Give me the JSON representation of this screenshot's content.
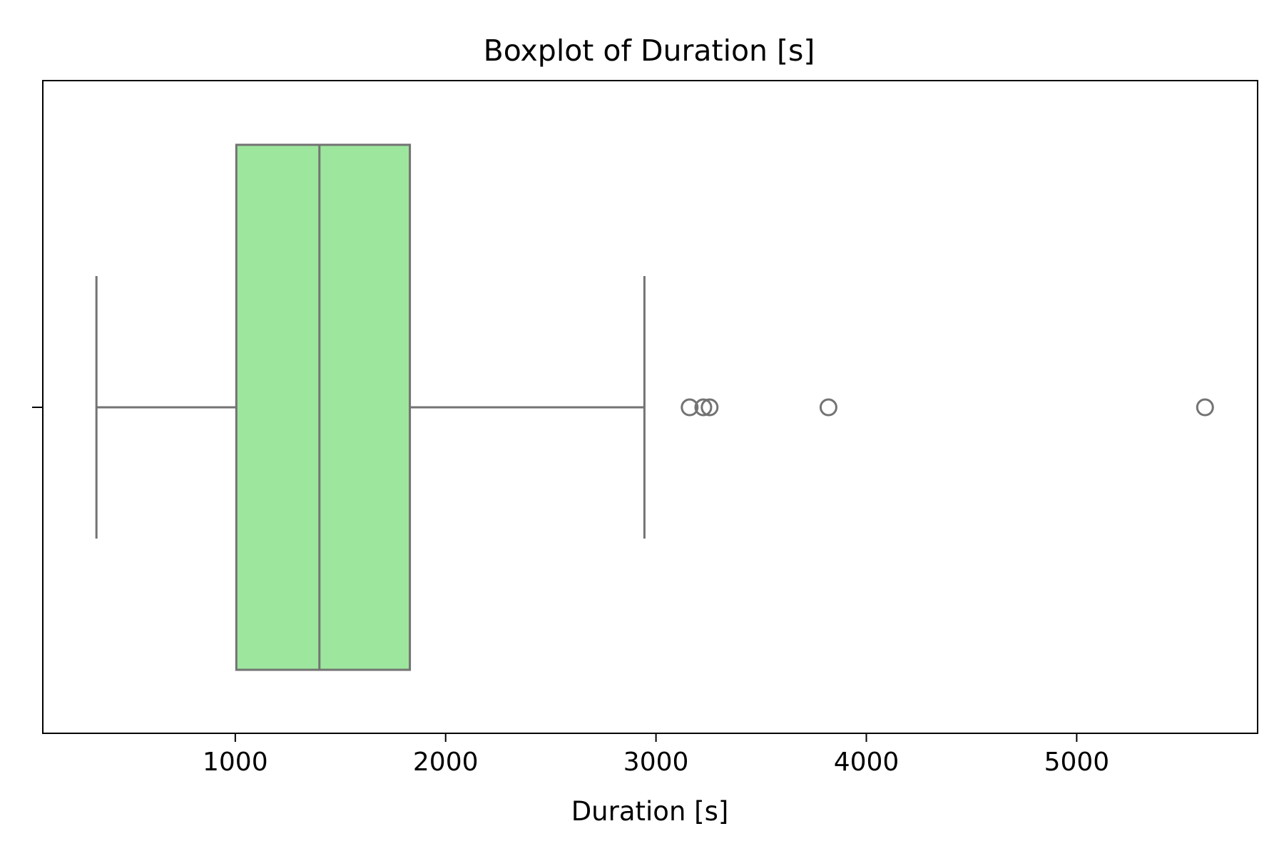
{
  "chart_data": {
    "type": "box",
    "title": "Boxplot of Duration [s]",
    "xlabel": "Duration [s]",
    "ylabel": "",
    "orientation": "horizontal",
    "xlim": [
      85,
      5860
    ],
    "xticks": [
      1000,
      2000,
      3000,
      4000,
      5000
    ],
    "xtick_labels": [
      "1000",
      "2000",
      "3000",
      "4000",
      "5000"
    ],
    "grid": false,
    "legend": "none",
    "box": {
      "whisker_low": 340,
      "q1": 1005,
      "median": 1400,
      "q3": 1830,
      "whisker_high": 2945,
      "outliers": [
        3160,
        3225,
        3255,
        3820,
        5610
      ]
    },
    "colors": {
      "box_fill": "#9de69d",
      "line": "#737373",
      "axis": "#000000"
    }
  }
}
